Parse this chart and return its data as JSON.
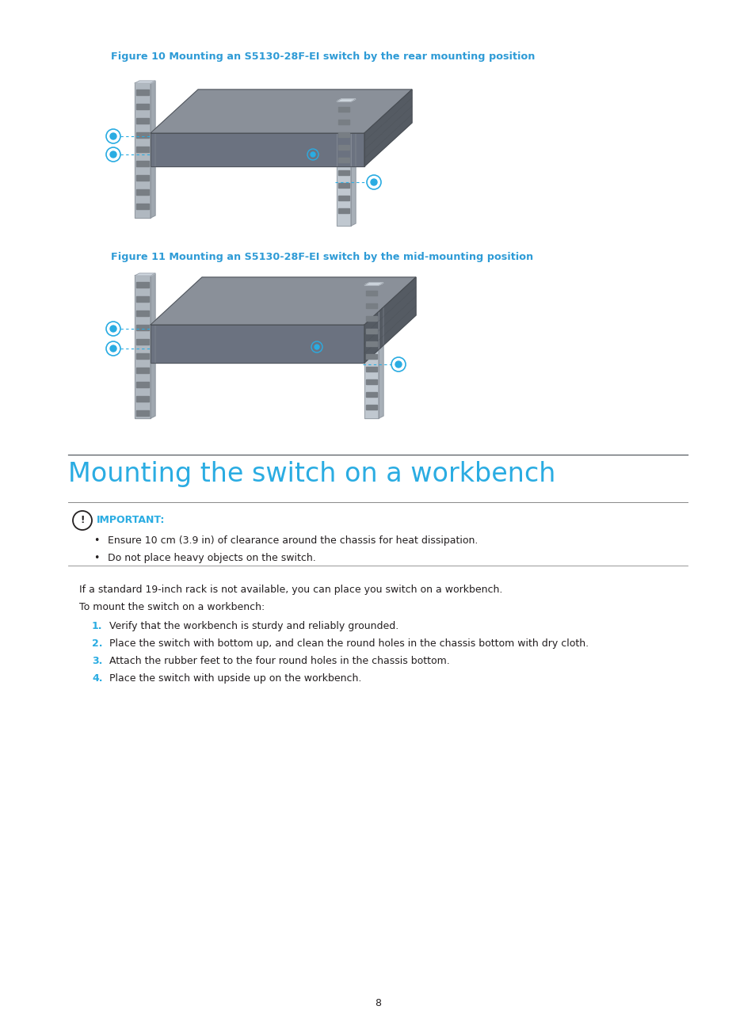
{
  "background_color": "#ffffff",
  "fig_width": 9.54,
  "fig_height": 12.94,
  "dpi": 100,
  "fig1_caption": "Figure 10 Mounting an S5130-28F-EI switch by the rear mounting position",
  "fig2_caption": "Figure 11 Mounting an S5130-28F-EI switch by the mid-mounting position",
  "caption_color": "#2E9BD6",
  "caption_fontsize": 9.2,
  "section_title": "Mounting the switch on a workbench",
  "section_title_color": "#2AACE2",
  "section_title_fontsize": 24,
  "important_label": "IMPORTANT:",
  "important_color": "#2AACE2",
  "important_fontsize": 9.0,
  "bullet_points": [
    "Ensure 10 cm (3.9 in) of clearance around the chassis for heat dissipation.",
    "Do not place heavy objects on the switch."
  ],
  "bullet_underline": [
    false,
    true
  ],
  "intro_text1": "If a standard 19-inch rack is not available, you can place you switch on a workbench.",
  "intro_text2": "To mount the switch on a workbench:",
  "steps": [
    "Verify that the workbench is sturdy and reliably grounded.",
    "Place the switch with bottom up, and clean the round holes in the chassis bottom with dry cloth.",
    "Attach the rubber feet to the four round holes in the chassis bottom.",
    "Place the switch with upside up on the workbench."
  ],
  "step_color": "#2AACE2",
  "body_fontsize": 9.0,
  "body_color": "#231F20",
  "page_number": "8"
}
